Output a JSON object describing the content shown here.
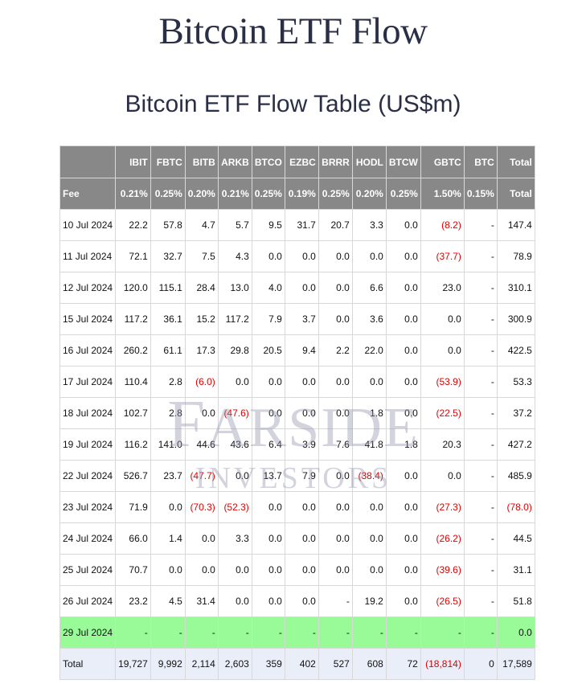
{
  "page": {
    "title": "Bitcoin ETF Flow"
  },
  "table": {
    "title": "Bitcoin ETF Flow Table (US$m)",
    "tickers": [
      "IBIT",
      "FBTC",
      "BITB",
      "ARKB",
      "BTCO",
      "EZBC",
      "BRRR",
      "HODL",
      "BTCW",
      "GBTC",
      "BTC",
      "Total"
    ],
    "fee_label": "Fee",
    "fees": [
      "0.21%",
      "0.25%",
      "0.20%",
      "0.21%",
      "0.25%",
      "0.19%",
      "0.25%",
      "0.20%",
      "0.25%",
      "1.50%",
      "0.15%",
      "Total"
    ],
    "rows": [
      {
        "date": "10 Jul 2024",
        "values": [
          "22.2",
          "57.8",
          "4.7",
          "5.7",
          "9.5",
          "31.7",
          "20.7",
          "3.3",
          "0.0",
          "(8.2)",
          "-",
          "147.4"
        ]
      },
      {
        "date": "11 Jul 2024",
        "values": [
          "72.1",
          "32.7",
          "7.5",
          "4.3",
          "0.0",
          "0.0",
          "0.0",
          "0.0",
          "0.0",
          "(37.7)",
          "-",
          "78.9"
        ]
      },
      {
        "date": "12 Jul 2024",
        "values": [
          "120.0",
          "115.1",
          "28.4",
          "13.0",
          "4.0",
          "0.0",
          "0.0",
          "6.6",
          "0.0",
          "23.0",
          "-",
          "310.1"
        ]
      },
      {
        "date": "15 Jul 2024",
        "values": [
          "117.2",
          "36.1",
          "15.2",
          "117.2",
          "7.9",
          "3.7",
          "0.0",
          "3.6",
          "0.0",
          "0.0",
          "-",
          "300.9"
        ]
      },
      {
        "date": "16 Jul 2024",
        "values": [
          "260.2",
          "61.1",
          "17.3",
          "29.8",
          "20.5",
          "9.4",
          "2.2",
          "22.0",
          "0.0",
          "0.0",
          "-",
          "422.5"
        ]
      },
      {
        "date": "17 Jul 2024",
        "values": [
          "110.4",
          "2.8",
          "(6.0)",
          "0.0",
          "0.0",
          "0.0",
          "0.0",
          "0.0",
          "0.0",
          "(53.9)",
          "-",
          "53.3"
        ]
      },
      {
        "date": "18 Jul 2024",
        "values": [
          "102.7",
          "2.8",
          "0.0",
          "(47.6)",
          "0.0",
          "0.0",
          "0.0",
          "1.8",
          "0.0",
          "(22.5)",
          "-",
          "37.2"
        ]
      },
      {
        "date": "19 Jul 2024",
        "values": [
          "116.2",
          "141.0",
          "44.6",
          "43.6",
          "6.4",
          "3.9",
          "7.6",
          "41.8",
          "1.8",
          "20.3",
          "-",
          "427.2"
        ]
      },
      {
        "date": "22 Jul 2024",
        "values": [
          "526.7",
          "23.7",
          "(47.7)",
          "0.0",
          "13.7",
          "7.9",
          "0.0",
          "(38.4)",
          "0.0",
          "0.0",
          "-",
          "485.9"
        ]
      },
      {
        "date": "23 Jul 2024",
        "values": [
          "71.9",
          "0.0",
          "(70.3)",
          "(52.3)",
          "0.0",
          "0.0",
          "0.0",
          "0.0",
          "0.0",
          "(27.3)",
          "-",
          "(78.0)"
        ]
      },
      {
        "date": "24 Jul 2024",
        "values": [
          "66.0",
          "1.4",
          "0.0",
          "3.3",
          "0.0",
          "0.0",
          "0.0",
          "0.0",
          "0.0",
          "(26.2)",
          "-",
          "44.5"
        ]
      },
      {
        "date": "25 Jul 2024",
        "values": [
          "70.7",
          "0.0",
          "0.0",
          "0.0",
          "0.0",
          "0.0",
          "0.0",
          "0.0",
          "0.0",
          "(39.6)",
          "-",
          "31.1"
        ]
      },
      {
        "date": "26 Jul 2024",
        "values": [
          "23.2",
          "4.5",
          "31.4",
          "0.0",
          "0.0",
          "0.0",
          "-",
          "19.2",
          "0.0",
          "(26.5)",
          "-",
          "51.8"
        ],
        "highlight": false
      },
      {
        "date": "29 Jul 2024",
        "values": [
          "-",
          "-",
          "-",
          "-",
          "-",
          "-",
          "-",
          "-",
          "-",
          "-",
          "-",
          "0.0"
        ],
        "highlight": true
      }
    ],
    "total": {
      "label": "Total",
      "values": [
        "19,727",
        "9,992",
        "2,114",
        "2,603",
        "359",
        "402",
        "527",
        "608",
        "72",
        "(18,814)",
        "0",
        "17,589"
      ]
    }
  },
  "watermark": {
    "line1": "Farside",
    "line2": "Investors"
  },
  "colors": {
    "header_bg": "#888888",
    "highlight_row": "#98fb98",
    "total_row": "#eaeef8",
    "negative": "#e00000"
  }
}
